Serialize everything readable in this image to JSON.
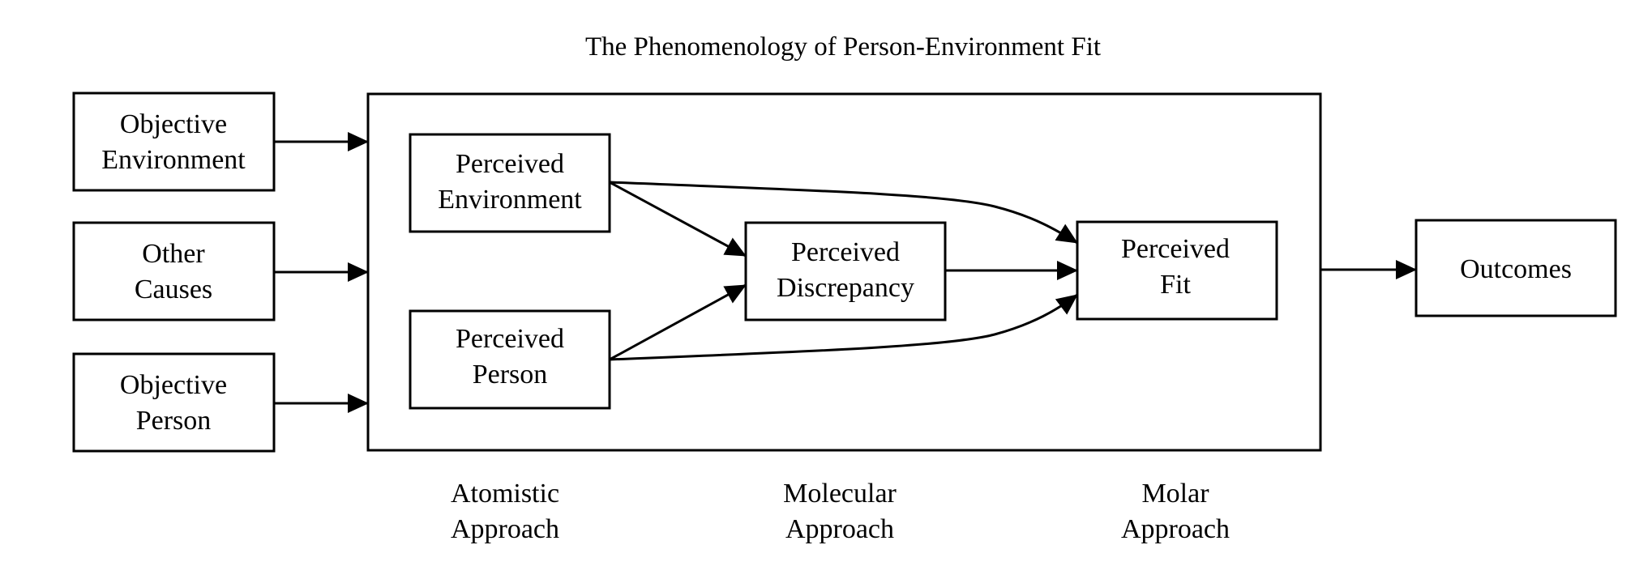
{
  "title": "The Phenomenology of Person-Environment Fit",
  "nodes": {
    "objective_environment": {
      "line1": "Objective",
      "line2": "Environment"
    },
    "other_causes": {
      "line1": "Other",
      "line2": "Causes"
    },
    "objective_person": {
      "line1": "Objective",
      "line2": "Person"
    },
    "perceived_environment": {
      "line1": "Perceived",
      "line2": "Environment"
    },
    "perceived_person": {
      "line1": "Perceived",
      "line2": "Person"
    },
    "perceived_discrepancy": {
      "line1": "Perceived",
      "line2": "Discrepancy"
    },
    "perceived_fit": {
      "line1": "Perceived",
      "line2": "Fit"
    },
    "outcomes": {
      "line1": "Outcomes"
    }
  },
  "approaches": {
    "atomistic": {
      "line1": "Atomistic",
      "line2": "Approach"
    },
    "molecular": {
      "line1": "Molecular",
      "line2": "Approach"
    },
    "molar": {
      "line1": "Molar",
      "line2": "Approach"
    }
  },
  "edges": [
    {
      "from": "objective_environment",
      "to": "perception_frame"
    },
    {
      "from": "other_causes",
      "to": "perception_frame"
    },
    {
      "from": "objective_person",
      "to": "perception_frame"
    },
    {
      "from": "perceived_environment",
      "to": "perceived_discrepancy"
    },
    {
      "from": "perceived_person",
      "to": "perceived_discrepancy"
    },
    {
      "from": "perceived_environment",
      "to": "perceived_fit"
    },
    {
      "from": "perceived_person",
      "to": "perceived_fit"
    },
    {
      "from": "perceived_discrepancy",
      "to": "perceived_fit"
    },
    {
      "from": "perception_frame",
      "to": "outcomes"
    }
  ]
}
